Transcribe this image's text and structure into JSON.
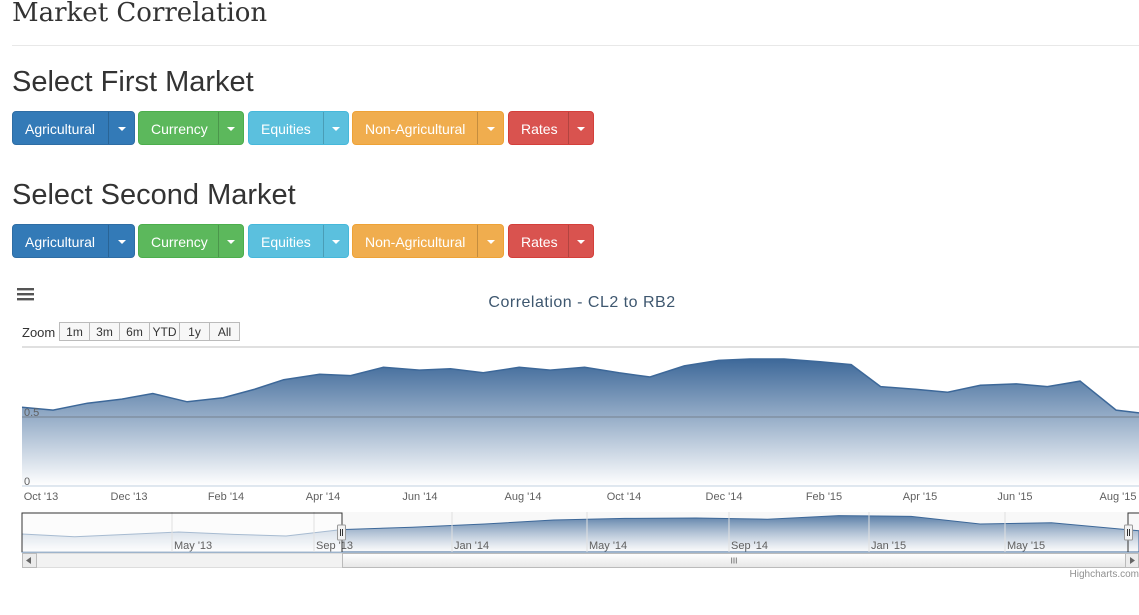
{
  "page": {
    "title": "Market Correlation"
  },
  "first_section": {
    "title": "Select First Market"
  },
  "second_section": {
    "title": "Select Second Market"
  },
  "market_buttons": [
    {
      "label": "Agricultural",
      "color": "#337ab7"
    },
    {
      "label": "Currency",
      "color": "#5cb85c"
    },
    {
      "label": "Equities",
      "color": "#5bc0de"
    },
    {
      "label": "Non-Agricultural",
      "color": "#f0ad4e"
    },
    {
      "label": "Rates",
      "color": "#d9534f"
    }
  ],
  "chart": {
    "menu_icon": "hamburger-icon",
    "zoom_label": "Zoom",
    "range_buttons": [
      "1m",
      "3m",
      "6m",
      "YTD",
      "1y",
      "All"
    ],
    "credits": "Highcharts.com",
    "scrollbar_grip": "III"
  },
  "chart_data": {
    "type": "area",
    "title": "Correlation - CL2 to RB2",
    "xlabel": "",
    "ylabel": "",
    "x_tick_labels": [
      "Oct '13",
      "Dec '13",
      "Feb '14",
      "Apr '14",
      "Jun '14",
      "Aug '14",
      "Oct '14",
      "Dec '14",
      "Feb '15",
      "Apr '15",
      "Jun '15",
      "Aug '15"
    ],
    "y_tick_labels": [
      "0",
      "0.5"
    ],
    "ylim": [
      0,
      1
    ],
    "series": [
      {
        "color": "#3d6899",
        "x": [
          "2013-10-01",
          "2013-10-20",
          "2013-11-10",
          "2013-12-01",
          "2013-12-20",
          "2014-01-10",
          "2014-02-01",
          "2014-02-20",
          "2014-03-10",
          "2014-04-01",
          "2014-04-20",
          "2014-05-10",
          "2014-06-01",
          "2014-06-20",
          "2014-07-10",
          "2014-08-01",
          "2014-08-20",
          "2014-09-10",
          "2014-10-01",
          "2014-10-20",
          "2014-11-10",
          "2014-12-01",
          "2014-12-20",
          "2015-01-10",
          "2015-02-01",
          "2015-02-20",
          "2015-03-10",
          "2015-04-01",
          "2015-04-20",
          "2015-05-10",
          "2015-06-01",
          "2015-06-20",
          "2015-07-10",
          "2015-08-01",
          "2015-08-15"
        ],
        "values": [
          0.57,
          0.55,
          0.6,
          0.63,
          0.67,
          0.61,
          0.64,
          0.7,
          0.77,
          0.81,
          0.8,
          0.86,
          0.84,
          0.85,
          0.82,
          0.86,
          0.84,
          0.86,
          0.82,
          0.79,
          0.87,
          0.91,
          0.92,
          0.92,
          0.9,
          0.88,
          0.72,
          0.7,
          0.68,
          0.73,
          0.74,
          0.72,
          0.76,
          0.55,
          0.53
        ]
      }
    ],
    "navigator": {
      "x_tick_labels": [
        "May '13",
        "Sep '13",
        "Jan '14",
        "May '14",
        "Sep '14",
        "Jan '15",
        "May '15"
      ],
      "x": [
        "2013-01-01",
        "2013-02-15",
        "2013-04-01",
        "2013-05-15",
        "2013-07-01",
        "2013-08-15",
        "2013-10-01",
        "2013-12-01",
        "2014-02-01",
        "2014-04-01",
        "2014-06-01",
        "2014-08-01",
        "2014-10-01",
        "2014-12-01",
        "2015-02-01",
        "2015-04-01",
        "2015-06-01",
        "2015-08-15"
      ],
      "values": [
        0.45,
        0.38,
        0.44,
        0.5,
        0.44,
        0.4,
        0.56,
        0.62,
        0.7,
        0.8,
        0.84,
        0.85,
        0.82,
        0.91,
        0.89,
        0.7,
        0.73,
        0.53
      ],
      "selected_range": [
        "Oct '13",
        "Aug '15"
      ]
    }
  }
}
